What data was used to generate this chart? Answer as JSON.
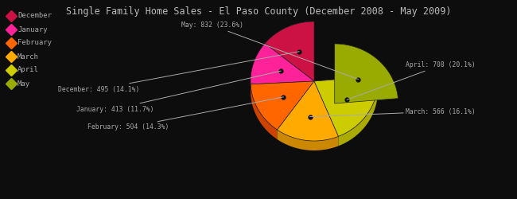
{
  "title": "Single Family Home Sales - El Paso County (December 2008 - May 2009)",
  "labels": [
    "December",
    "January",
    "February",
    "March",
    "April",
    "May"
  ],
  "values": [
    495,
    413,
    504,
    566,
    708,
    832
  ],
  "percentages": [
    14.1,
    11.7,
    14.3,
    16.1,
    20.1,
    23.6
  ],
  "colors": [
    "#cc1144",
    "#ff2299",
    "#ff6600",
    "#ffaa00",
    "#cccc00",
    "#99aa00"
  ],
  "shadow_colors": [
    "#881133",
    "#cc1177",
    "#cc4400",
    "#cc8800",
    "#aaaa00",
    "#778800"
  ],
  "explode_idx": 5,
  "explode_dist": 0.13,
  "background_color": "#0d0d0d",
  "text_color": "#aaaaaa",
  "title_color": "#bbbbbb",
  "startangle": 90,
  "legend_colors": [
    "#cc1144",
    "#ff2299",
    "#ff6600",
    "#ffaa00",
    "#cccc00",
    "#99aa00"
  ]
}
